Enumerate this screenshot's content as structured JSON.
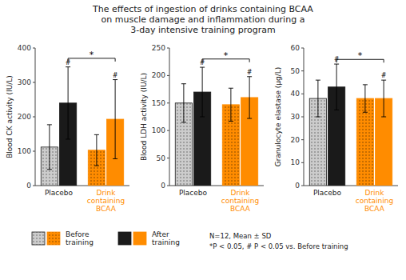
{
  "chart_data": [
    {
      "type": "bar",
      "title": "The effects of ingestion of drinks containing BCAA\non muscle damage and inflammation during a\n3-day intensive training program",
      "y_label": "Blood CK activity (IU/L)",
      "categories": [
        "Placebo",
        "Drink\ncontaining\nBCAA"
      ],
      "series": [
        {
          "name": "Before\ntraining",
          "colors": [
            "#CCCCCC",
            "#FF8C00"
          ],
          "values": [
            112,
            103
          ],
          "errors": [
            65,
            45
          ]
        },
        {
          "name": "After\ntraining",
          "colors": [
            "#1a1a1a",
            "#FF8C00"
          ],
          "values": [
            240,
            193
          ],
          "errors": [
            105,
            115
          ]
        }
      ],
      "ylim": [
        0,
        400
      ],
      "yticks": [
        0,
        100,
        200,
        300,
        400
      ],
      "grid": false,
      "legend": "bottom",
      "annotations": [
        {
          "text": "#",
          "category": "Placebo",
          "series": "After\ntraining"
        },
        {
          "text": "#",
          "category": "Drink\ncontaining\nBCAA",
          "series": "After\ntraining"
        },
        {
          "text": "*",
          "from": "Placebo",
          "to": "Drink\ncontaining\nBCAA",
          "series": "After\ntraining",
          "y": 370
        },
        {
          "text": "N=12, Mean ± SD\n*P < 0.05, # P < 0.05 vs. Before training"
        }
      ]
    },
    {
      "type": "bar",
      "y_label": "Blood LDH activity (IU/L)",
      "categories": [
        "Placebo",
        "Drink\ncontaining\nBCAA"
      ],
      "series": [
        {
          "name": "Before\ntraining",
          "colors": [
            "#CCCCCC",
            "#FF8C00"
          ],
          "values": [
            150,
            147
          ],
          "errors": [
            35,
            30
          ]
        },
        {
          "name": "After\ntraining",
          "colors": [
            "#1a1a1a",
            "#FF8C00"
          ],
          "values": [
            170,
            160
          ],
          "errors": [
            45,
            38
          ]
        }
      ],
      "ylim": [
        0,
        250
      ],
      "yticks": [
        0,
        50,
        100,
        150,
        200,
        250
      ],
      "grid": false,
      "annotations": [
        {
          "text": "#",
          "category": "Placebo",
          "series": "After\ntraining"
        },
        {
          "text": "#",
          "category": "Drink\ncontaining\nBCAA",
          "series": "After\ntraining"
        },
        {
          "text": "*",
          "from": "Placebo",
          "to": "Drink\ncontaining\nBCAA",
          "series": "After\ntraining",
          "y": 230
        }
      ]
    },
    {
      "type": "bar",
      "y_label": "Granulocyte elastase (μg/L)",
      "categories": [
        "Placebo",
        "Drink\ncontaining\nBCAA"
      ],
      "series": [
        {
          "name": "Before\ntraining",
          "colors": [
            "#CCCCCC",
            "#FF8C00"
          ],
          "values": [
            38,
            38
          ],
          "errors": [
            8,
            6
          ]
        },
        {
          "name": "After\ntraining",
          "colors": [
            "#1a1a1a",
            "#FF8C00"
          ],
          "values": [
            43,
            38
          ],
          "errors": [
            10,
            8
          ]
        }
      ],
      "ylim": [
        0,
        60
      ],
      "yticks": [
        0,
        10,
        20,
        30,
        40,
        50,
        60
      ],
      "grid": false,
      "annotations": [
        {
          "text": "#",
          "category": "Placebo",
          "series": "After\ntraining"
        },
        {
          "text": "#",
          "category": "Drink\ncontaining\nBCAA",
          "series": "After\ntraining"
        },
        {
          "text": "*",
          "from": "Placebo",
          "to": "Drink\ncontaining\nBCAA",
          "series": "After\ntraining",
          "y": 55.02
        }
      ]
    }
  ]
}
